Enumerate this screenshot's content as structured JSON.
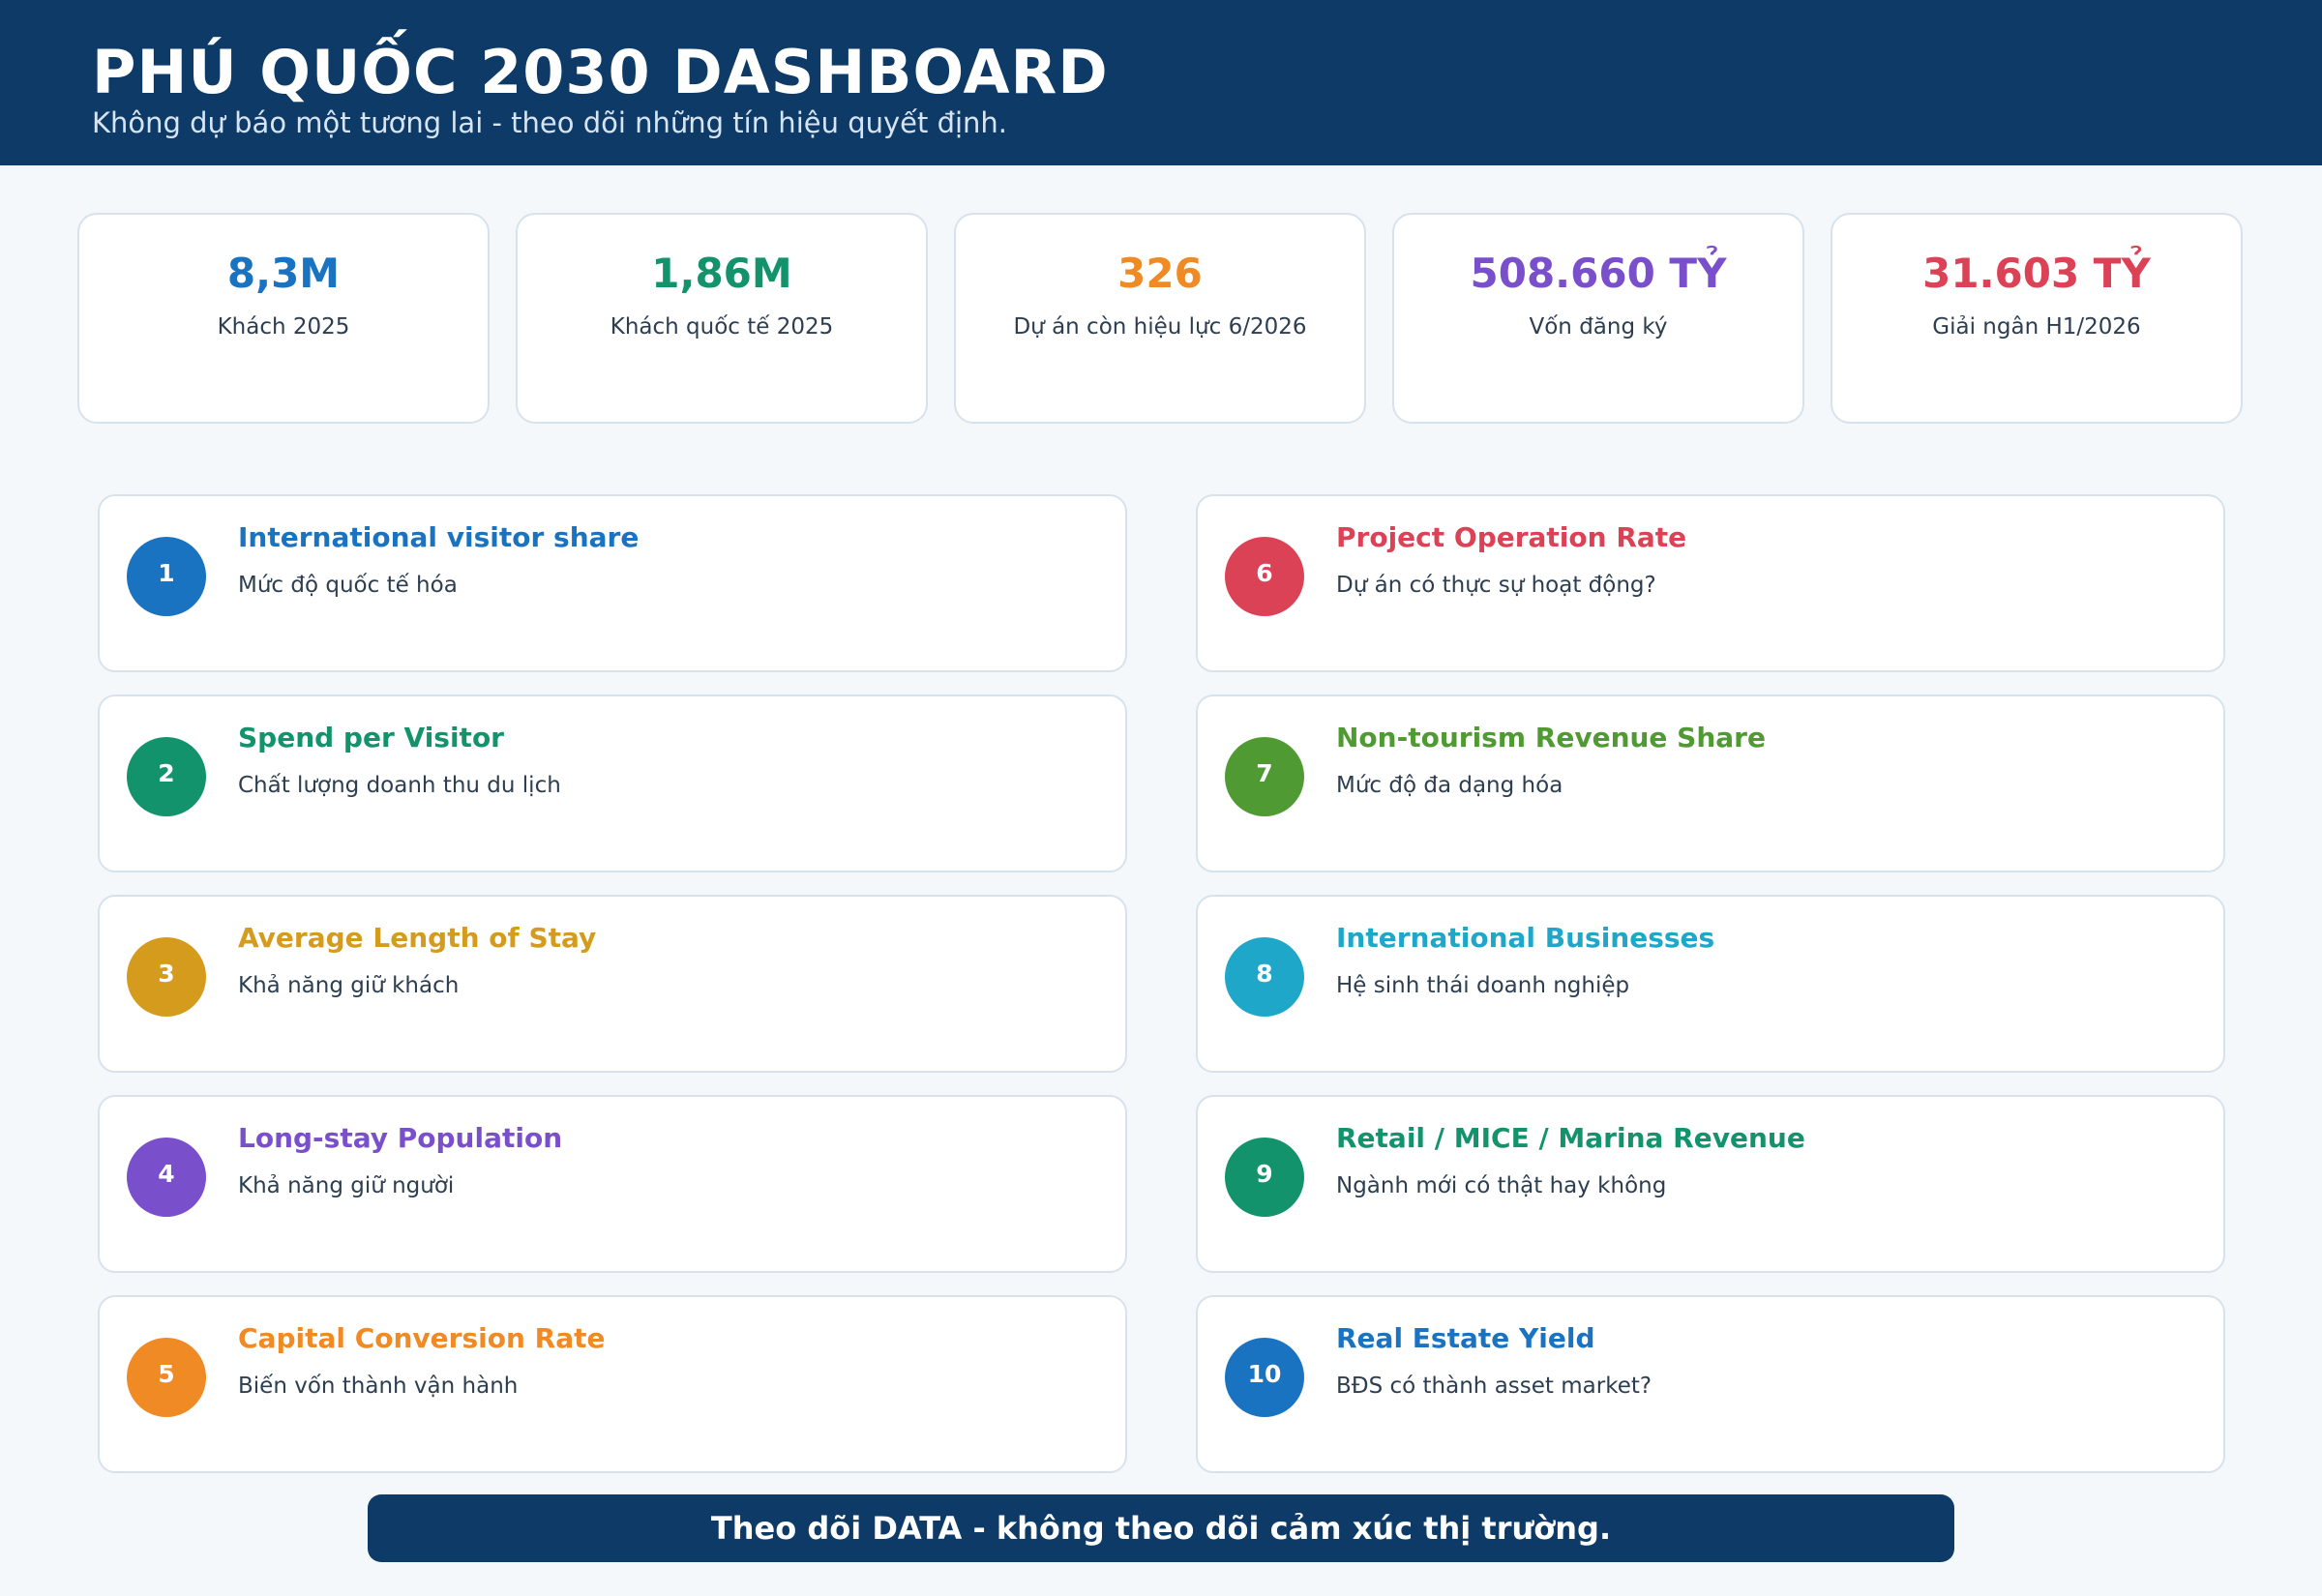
{
  "header": {
    "title": "PHÚ QUỐC 2030 DASHBOARD",
    "subtitle": "Không dự báo một tương lai - theo dõi những tín hiệu quyết định."
  },
  "stats": [
    {
      "value": "8,3M",
      "label": "Khách 2025",
      "color": "#1a73c0"
    },
    {
      "value": "1,86M",
      "label": "Khách quốc tế 2025",
      "color": "#13936c"
    },
    {
      "value": "326",
      "label": "Dự án còn hiệu lực 6/2026",
      "color": "#f08a24"
    },
    {
      "value": "508.660 TỶ",
      "label": "Vốn đăng ký",
      "color": "#7a4fcc"
    },
    {
      "value": "31.603 TỶ",
      "label": "Giải ngân H1/2026",
      "color": "#dc4256"
    }
  ],
  "signals": [
    {
      "number": "1",
      "title": "International visitor share",
      "description": "Mức độ quốc tế hóa",
      "color": "#1a73c0"
    },
    {
      "number": "2",
      "title": "Spend per Visitor",
      "description": "Chất lượng doanh thu du lịch",
      "color": "#13936c"
    },
    {
      "number": "3",
      "title": "Average Length of Stay",
      "description": "Khả năng giữ khách",
      "color": "#d59b1c"
    },
    {
      "number": "4",
      "title": "Long-stay Population",
      "description": "Khả năng giữ người",
      "color": "#7a4fcc"
    },
    {
      "number": "5",
      "title": "Capital Conversion Rate",
      "description": "Biến vốn thành vận hành",
      "color": "#f08a24"
    },
    {
      "number": "6",
      "title": "Project Operation Rate",
      "description": "Dự án có thực sự hoạt động?",
      "color": "#dc4256"
    },
    {
      "number": "7",
      "title": "Non-tourism Revenue Share",
      "description": "Mức độ đa dạng hóa",
      "color": "#4f9a32"
    },
    {
      "number": "8",
      "title": "International Businesses",
      "description": "Hệ sinh thái doanh nghiệp",
      "color": "#1fa7c9"
    },
    {
      "number": "9",
      "title": "Retail / MICE / Marina Revenue",
      "description": "Ngành mới có thật hay không",
      "color": "#13936c"
    },
    {
      "number": "10",
      "title": "Real Estate Yield",
      "description": "BĐS có thành asset market?",
      "color": "#1a73c0"
    }
  ],
  "footer": {
    "text": "Theo dõi DATA - không theo dõi cảm xúc thị trường."
  }
}
